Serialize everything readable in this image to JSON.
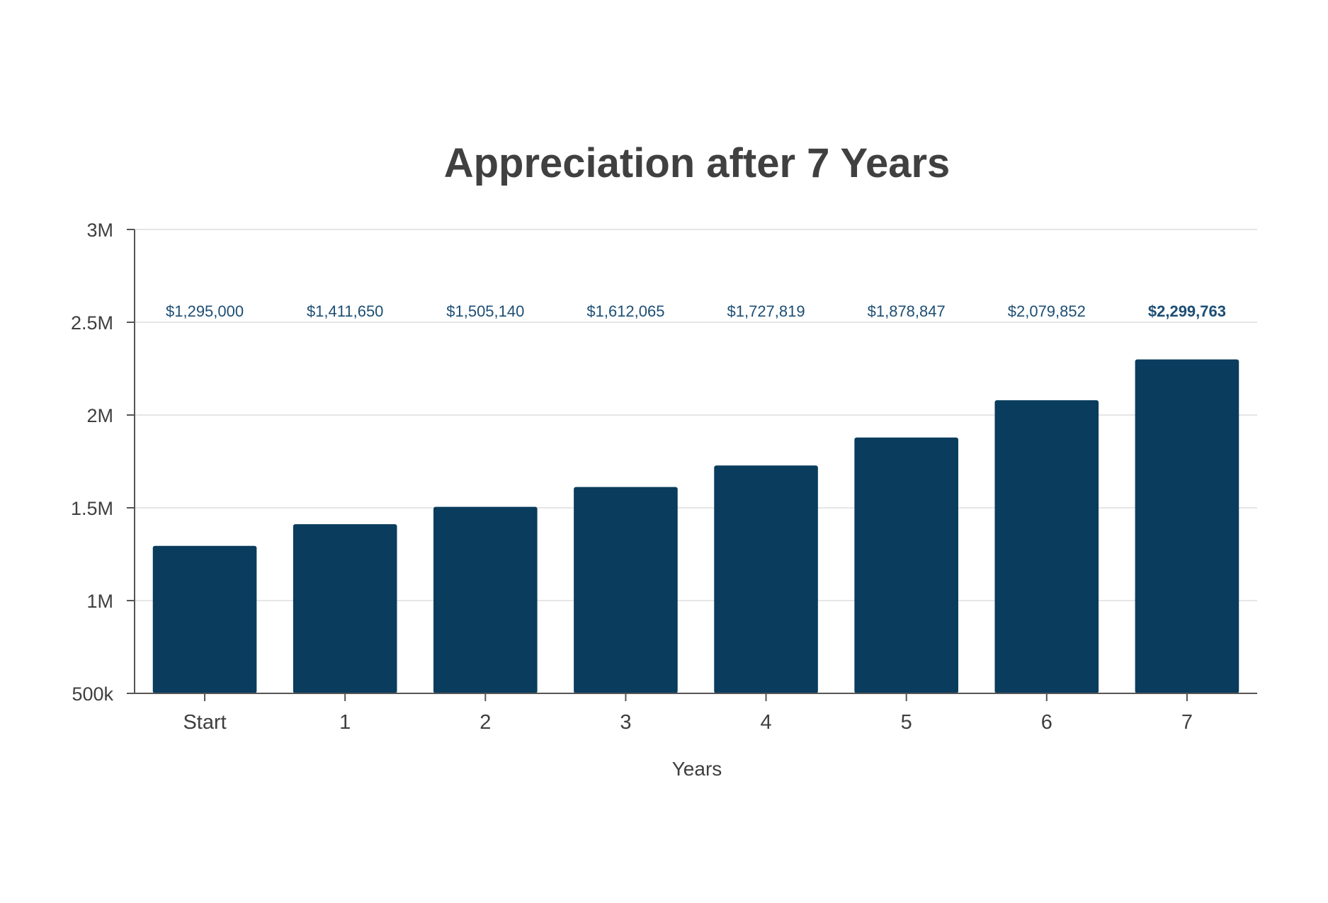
{
  "chart_data": {
    "type": "bar",
    "title": "Appreciation after 7 Years",
    "xlabel": "Years",
    "ylabel": "",
    "categories": [
      "Start",
      "1",
      "2",
      "3",
      "4",
      "5",
      "6",
      "7"
    ],
    "values": [
      1295000,
      1411650,
      1505140,
      1612065,
      1727819,
      1878847,
      2079852,
      2299763
    ],
    "data_labels": [
      "$1,295,000",
      "$1,411,650",
      "$1,505,140",
      "$1,612,065",
      "$1,727,819",
      "$1,878,847",
      "$2,079,852",
      "$2,299,763"
    ],
    "data_label_position": "top",
    "ylim": [
      500000,
      3000000
    ],
    "yticks": [
      500000,
      1000000,
      1500000,
      2000000,
      2500000,
      3000000
    ],
    "ytick_labels": [
      "500k",
      "1M",
      "1.5M",
      "2M",
      "2.5M",
      "3M"
    ],
    "grid": true,
    "legend": "none",
    "colors": {
      "bar": "#093c5d",
      "data_label": "#1d4e74",
      "grid": "#e6e6e6",
      "axis": "#555555"
    }
  }
}
